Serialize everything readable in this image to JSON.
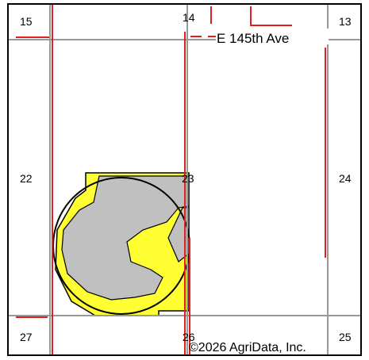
{
  "map": {
    "sections": [
      "15",
      "14",
      "13",
      "22",
      "23",
      "24",
      "27",
      "26",
      "25"
    ],
    "road_label": "E 145th Ave",
    "copyright": "©2026 AgriData, Inc."
  }
}
